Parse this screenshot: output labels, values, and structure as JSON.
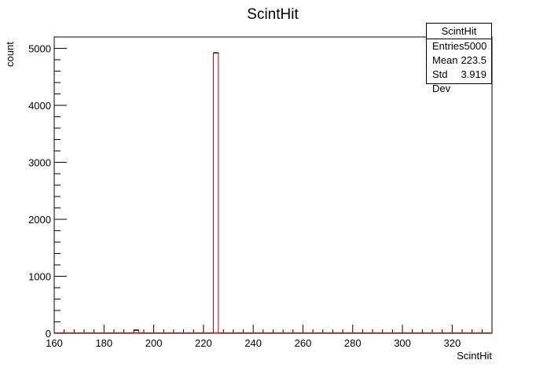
{
  "chart_data": {
    "type": "bar",
    "title": "ScintHit",
    "xlabel": "ScintHit",
    "ylabel": "count",
    "xlim": [
      160,
      336
    ],
    "ylim": [
      0,
      5200
    ],
    "xticks": [
      160,
      180,
      200,
      220,
      240,
      260,
      280,
      300,
      320
    ],
    "yticks": [
      0,
      1000,
      2000,
      3000,
      4000,
      5000
    ],
    "bins": [
      {
        "x0": 192,
        "x1": 194,
        "count": 55
      },
      {
        "x0": 224,
        "x1": 226,
        "count": 4920
      }
    ],
    "line_color": "#cc0000",
    "stats": {
      "title": "ScintHit",
      "rows": [
        {
          "label": "Entries",
          "value": "5000"
        },
        {
          "label": "Mean",
          "value": "223.5"
        },
        {
          "label": "Std Dev",
          "value": "3.919"
        }
      ]
    }
  }
}
